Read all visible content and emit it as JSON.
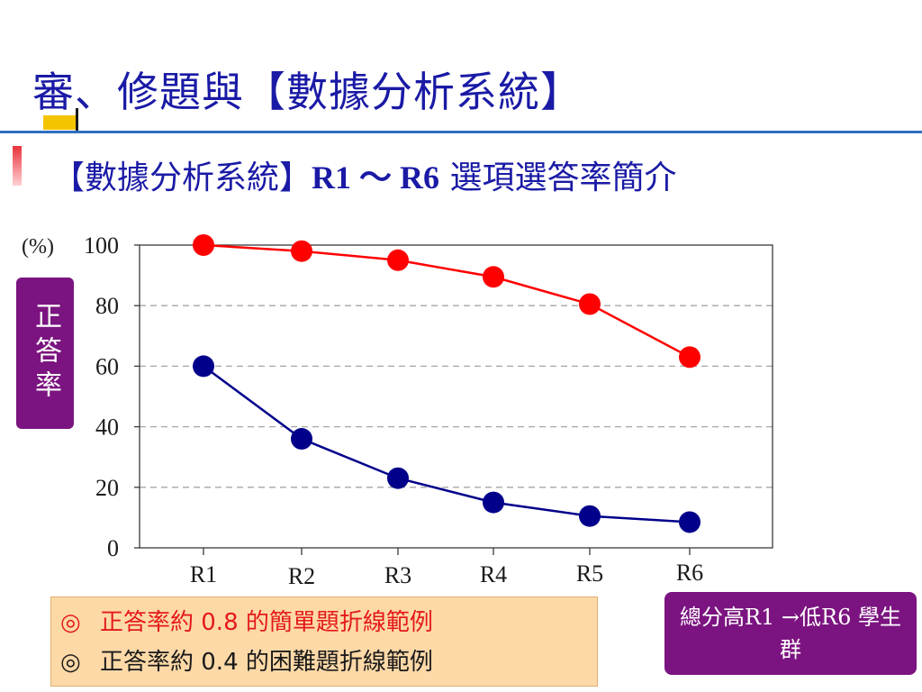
{
  "slide": {
    "title": "審、修題與【數據分析系統】",
    "subtitle_prefix": "【數據分析系統】",
    "subtitle_bold": "R1 ～ R6",
    "subtitle_suffix": " 選項選答率簡介",
    "side_label": "正答率",
    "notes": [
      "正答率約 0.8 的簡單題折線範例",
      "正答率約 0.4 的困難題折線範例"
    ],
    "note_marker": "◎",
    "legend_box": "總分高R1 →低R6 學生群"
  },
  "chart_data": {
    "type": "line",
    "categories": [
      "R1",
      "R2",
      "R3",
      "R4",
      "R5",
      "R6"
    ],
    "series": [
      {
        "values": [
          100,
          98,
          95,
          89.5,
          80.5,
          63
        ],
        "color": "#ff0000"
      },
      {
        "values": [
          60,
          36,
          23,
          15,
          10.5,
          8.5
        ],
        "color": "#00008b"
      }
    ],
    "ylabel": "(%)",
    "ylim": [
      0,
      100
    ],
    "yticks": [
      0,
      20,
      40,
      60,
      80,
      100
    ],
    "grid": "horizontal dashed"
  }
}
